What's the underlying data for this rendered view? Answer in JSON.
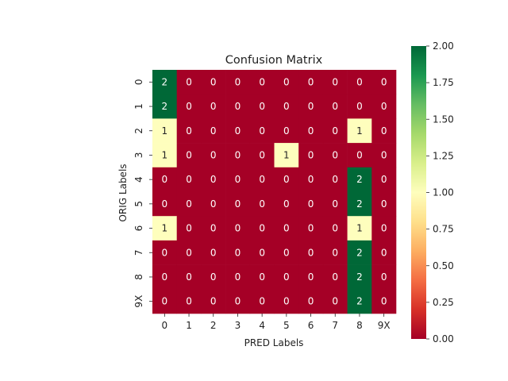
{
  "chart_data": {
    "type": "heatmap",
    "title": "Confusion Matrix",
    "xlabel": "PRED Labels",
    "ylabel": "ORIG Labels",
    "x_categories": [
      "0",
      "1",
      "2",
      "3",
      "4",
      "5",
      "6",
      "7",
      "8",
      "9X"
    ],
    "y_categories": [
      "0",
      "1",
      "2",
      "3",
      "4",
      "5",
      "6",
      "7",
      "8",
      "9X"
    ],
    "values": [
      [
        2,
        0,
        0,
        0,
        0,
        0,
        0,
        0,
        0,
        0
      ],
      [
        2,
        0,
        0,
        0,
        0,
        0,
        0,
        0,
        0,
        0
      ],
      [
        1,
        0,
        0,
        0,
        0,
        0,
        0,
        0,
        1,
        0
      ],
      [
        1,
        0,
        0,
        0,
        0,
        1,
        0,
        0,
        0,
        0
      ],
      [
        0,
        0,
        0,
        0,
        0,
        0,
        0,
        0,
        2,
        0
      ],
      [
        0,
        0,
        0,
        0,
        0,
        0,
        0,
        0,
        2,
        0
      ],
      [
        1,
        0,
        0,
        0,
        0,
        0,
        0,
        0,
        1,
        0
      ],
      [
        0,
        0,
        0,
        0,
        0,
        0,
        0,
        0,
        2,
        0
      ],
      [
        0,
        0,
        0,
        0,
        0,
        0,
        0,
        0,
        2,
        0
      ],
      [
        0,
        0,
        0,
        0,
        0,
        0,
        0,
        0,
        2,
        0
      ]
    ],
    "colormap": "RdYlGn",
    "color_range": [
      0,
      2
    ],
    "colorbar_ticks": [
      "0.00",
      "0.25",
      "0.50",
      "0.75",
      "1.00",
      "1.25",
      "1.50",
      "1.75",
      "2.00"
    ],
    "colors": {
      "low": "#a50026",
      "mid": "#fefebd",
      "high": "#006837"
    }
  }
}
